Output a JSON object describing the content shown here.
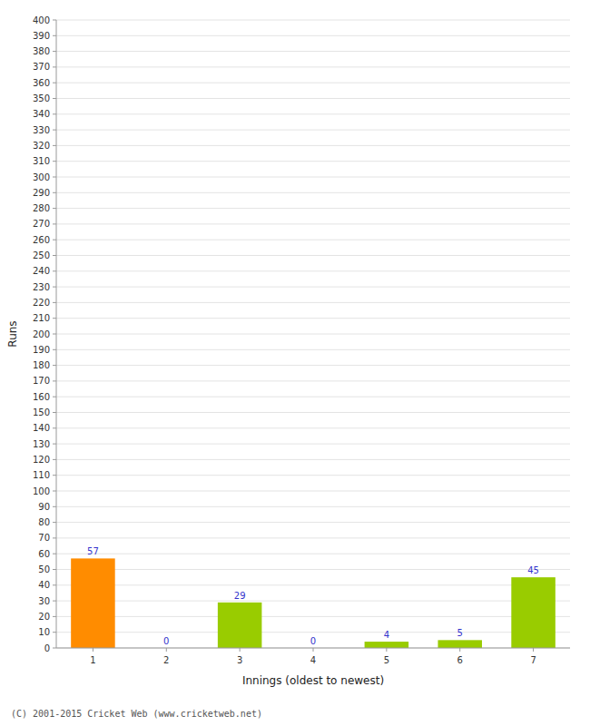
{
  "chart_data": {
    "type": "bar",
    "categories": [
      1,
      2,
      3,
      4,
      5,
      6,
      7
    ],
    "values": [
      57,
      0,
      29,
      0,
      4,
      5,
      45
    ],
    "colors": [
      "#ff8c00",
      "#99cc00",
      "#99cc00",
      "#99cc00",
      "#99cc00",
      "#99cc00",
      "#99cc00"
    ],
    "xlabel": "Innings (oldest to newest)",
    "ylabel": "Runs",
    "ylim": [
      0,
      400
    ],
    "yticks": [
      0,
      10,
      20,
      30,
      40,
      50,
      60,
      70,
      80,
      90,
      100,
      110,
      120,
      130,
      140,
      150,
      160,
      170,
      180,
      190,
      200,
      210,
      220,
      230,
      240,
      250,
      260,
      270,
      280,
      290,
      300,
      310,
      320,
      330,
      340,
      350,
      360,
      370,
      380,
      390,
      400
    ],
    "grid": true,
    "data_labels": true,
    "annotations": [
      "(C) 2001-2015 Cricket Web (www.cricketweb.net)"
    ]
  }
}
